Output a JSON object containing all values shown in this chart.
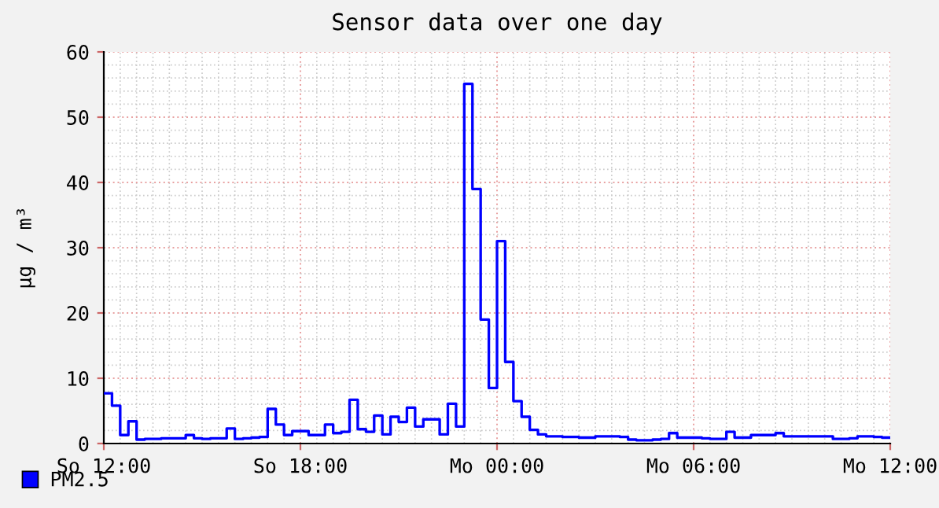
{
  "chart_data": {
    "type": "step",
    "title": "Sensor data over one day",
    "ylabel": "µg / m³",
    "categories": [
      "So 12:00",
      null,
      null,
      null,
      null,
      null,
      null,
      null,
      null,
      null,
      null,
      null,
      null,
      null,
      null,
      null,
      null,
      null,
      null,
      null,
      null,
      null,
      null,
      null,
      "So 18:00",
      null,
      null,
      null,
      null,
      null,
      null,
      null,
      null,
      null,
      null,
      null,
      null,
      null,
      null,
      null,
      null,
      null,
      null,
      null,
      null,
      null,
      null,
      null,
      "Mo 00:00",
      null,
      null,
      null,
      null,
      null,
      null,
      null,
      null,
      null,
      null,
      null,
      null,
      null,
      null,
      null,
      null,
      null,
      null,
      null,
      null,
      null,
      null,
      null,
      "Mo 06:00",
      null,
      null,
      null,
      null,
      null,
      null,
      null,
      null,
      null,
      null,
      null,
      null,
      null,
      null,
      null,
      null,
      null,
      null,
      null,
      null,
      null,
      null,
      null,
      "Mo 12:00"
    ],
    "series": [
      {
        "name": "PM2.5",
        "color": "#0000ff",
        "values": [
          7.7,
          5.8,
          1.3,
          3.4,
          0.6,
          0.7,
          0.7,
          0.8,
          0.8,
          0.8,
          1.3,
          0.8,
          0.7,
          0.8,
          0.8,
          2.3,
          0.7,
          0.8,
          0.9,
          1.0,
          5.3,
          2.9,
          1.3,
          1.9,
          1.9,
          1.3,
          1.3,
          2.9,
          1.6,
          1.8,
          6.7,
          2.2,
          1.8,
          4.3,
          1.4,
          4.1,
          3.3,
          5.5,
          2.6,
          3.7,
          3.7,
          1.4,
          6.1,
          2.6,
          55.1,
          39,
          19,
          8.5,
          31,
          12.5,
          6.5,
          4.1,
          2.1,
          1.4,
          1.1,
          1.1,
          1.0,
          1.0,
          0.9,
          0.9,
          1.1,
          1.1,
          1.1,
          1.0,
          0.6,
          0.5,
          0.5,
          0.6,
          0.7,
          1.6,
          0.9,
          0.9,
          0.9,
          0.8,
          0.7,
          0.7,
          1.8,
          0.9,
          0.9,
          1.3,
          1.3,
          1.3,
          1.6,
          1.1,
          1.1,
          1.1,
          1.1,
          1.1,
          1.1,
          0.7,
          0.7,
          0.8,
          1.1,
          1.1,
          1.0,
          0.9,
          0.9
        ]
      }
    ],
    "ylim": [
      0,
      60
    ],
    "yticks": [
      0,
      10,
      20,
      30,
      40,
      50,
      60
    ],
    "grid": true,
    "legend": "bottom left",
    "marker": "none",
    "line_style": "solid"
  }
}
